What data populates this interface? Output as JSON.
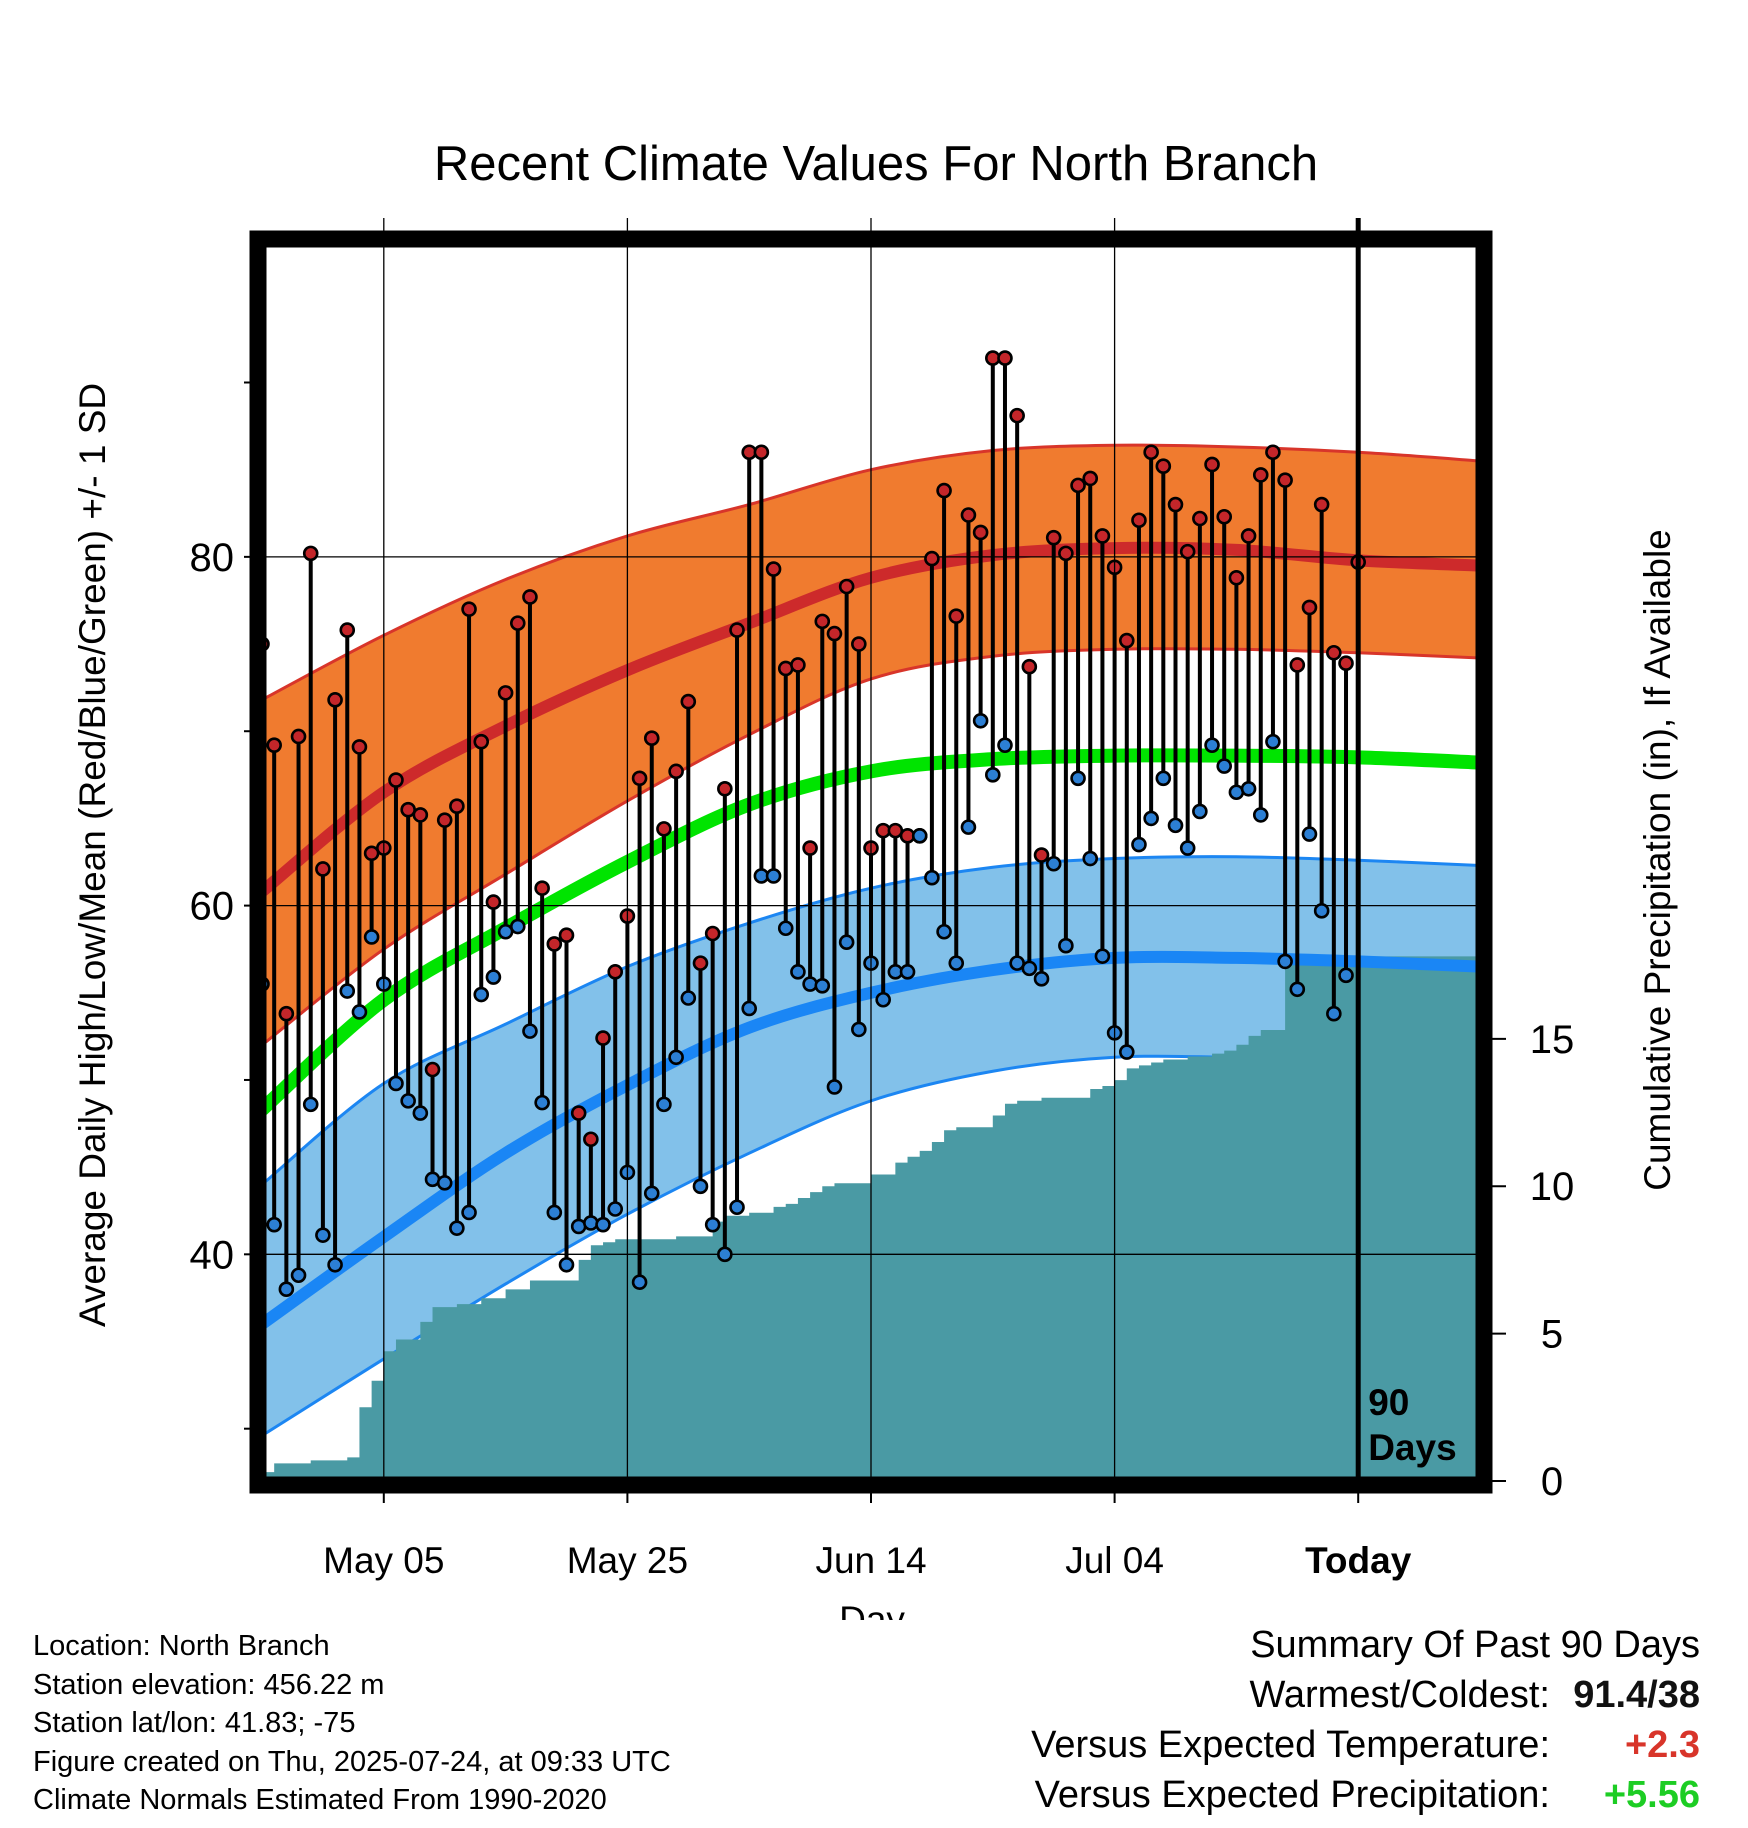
{
  "chart_data": {
    "type": "line",
    "title": "Recent Climate Values For North Branch",
    "xlabel": "Day",
    "ylabel": "Average Daily High/Low/Mean (Red/Blue/Green) +/- 1 SD",
    "y2label": "Cumulative Precipitation (in), If Available",
    "x_tick_labels": [
      "May 05",
      "May 25",
      "Jun 14",
      "Jul 04",
      "Today"
    ],
    "ylim": [
      27,
      98
    ],
    "y2lim": [
      0,
      42
    ],
    "y_ticks": [
      40,
      60,
      80
    ],
    "y2_ticks": [
      0,
      5,
      10,
      15
    ],
    "today_marker_label": [
      "90",
      "Days"
    ],
    "expected_curves": {
      "day_index": [
        0,
        10,
        20,
        30,
        40,
        50,
        60,
        70,
        80,
        90,
        100
      ],
      "normal_high_mean": [
        60.8,
        66.5,
        70.3,
        73.5,
        76.2,
        78.8,
        80.1,
        80.5,
        80.4,
        79.8,
        79.5
      ],
      "normal_high_upper": [
        71.8,
        75.5,
        78.7,
        81.2,
        83.0,
        85.0,
        86.1,
        86.4,
        86.3,
        86.0,
        85.5
      ],
      "normal_high_lower": [
        52.0,
        57.5,
        61.8,
        66.0,
        69.8,
        73.0,
        74.3,
        74.7,
        74.7,
        74.5,
        74.2
      ],
      "normal_mean": [
        48.3,
        54.6,
        58.7,
        62.5,
        65.8,
        67.7,
        68.4,
        68.6,
        68.6,
        68.5,
        68.2
      ],
      "normal_low_mean": [
        36.0,
        41.0,
        45.8,
        49.7,
        53.0,
        55.0,
        56.3,
        57.0,
        57.0,
        56.8,
        56.5
      ],
      "normal_low_upper": [
        44.0,
        49.8,
        53.2,
        56.5,
        59.0,
        61.0,
        62.2,
        62.7,
        62.8,
        62.6,
        62.3
      ],
      "normal_low_lower": [
        29.6,
        34.0,
        38.3,
        42.3,
        45.8,
        48.8,
        50.5,
        51.3,
        51.3,
        51.2,
        51.1
      ]
    },
    "series": [
      {
        "name": "Daily High",
        "color": "#c4262a",
        "day_index": [
          0,
          1,
          2,
          3,
          4,
          5,
          6,
          7,
          8,
          9,
          10,
          11,
          12,
          13,
          14,
          15,
          16,
          17,
          18,
          19,
          20,
          21,
          22,
          23,
          24,
          25,
          26,
          27,
          28,
          29,
          30,
          31,
          32,
          33,
          34,
          35,
          36,
          37,
          38,
          39,
          40,
          41,
          42,
          43,
          44,
          45,
          46,
          47,
          48,
          49,
          50,
          51,
          52,
          53,
          54,
          55,
          56,
          57,
          58,
          59,
          60,
          61,
          62,
          63,
          64,
          65,
          66,
          67,
          68,
          69,
          70,
          71,
          72,
          73,
          74,
          75,
          76,
          77,
          78,
          79,
          80,
          81,
          82,
          83,
          84,
          85,
          86,
          87,
          88,
          89,
          90
        ],
        "values": [
          75.0,
          69.2,
          53.8,
          69.7,
          80.2,
          62.1,
          71.8,
          75.8,
          69.1,
          63.0,
          63.3,
          67.2,
          65.5,
          65.2,
          50.6,
          64.9,
          65.7,
          77.0,
          69.4,
          60.2,
          72.2,
          76.2,
          77.7,
          61.0,
          57.8,
          58.3,
          48.1,
          46.6,
          52.4,
          56.2,
          59.4,
          67.3,
          69.6,
          64.4,
          67.7,
          71.7,
          56.7,
          58.4,
          66.7,
          75.8,
          86.0,
          86.0,
          79.3,
          73.6,
          73.8,
          63.3,
          76.3,
          75.6,
          78.3,
          75.0,
          63.3,
          64.3,
          64.3,
          64.0,
          64.0,
          79.9,
          83.8,
          76.6,
          82.4,
          81.4,
          91.4,
          91.4,
          88.1,
          73.7,
          62.9,
          81.1,
          80.2,
          84.1,
          84.5,
          81.2,
          79.4,
          75.2,
          82.1,
          86.0,
          85.2,
          83.0,
          80.3,
          82.2,
          85.3,
          82.3,
          78.8,
          81.2,
          84.7,
          86.0,
          84.4,
          73.8,
          77.1,
          83.0,
          74.5,
          73.9,
          79.7
        ]
      },
      {
        "name": "Daily Low",
        "color": "#2c7fd4",
        "day_index": [
          0,
          1,
          2,
          3,
          4,
          5,
          6,
          7,
          8,
          9,
          10,
          11,
          12,
          13,
          14,
          15,
          16,
          17,
          18,
          19,
          20,
          21,
          22,
          23,
          24,
          25,
          26,
          27,
          28,
          29,
          30,
          31,
          32,
          33,
          34,
          35,
          36,
          37,
          38,
          39,
          40,
          41,
          42,
          43,
          44,
          45,
          46,
          47,
          48,
          49,
          50,
          51,
          52,
          53,
          54,
          55,
          56,
          57,
          58,
          59,
          60,
          61,
          62,
          63,
          64,
          65,
          66,
          67,
          68,
          69,
          70,
          71,
          72,
          73,
          74,
          75,
          76,
          77,
          78,
          79,
          80,
          81,
          82,
          83,
          84,
          85,
          86,
          87,
          88,
          89,
          90
        ],
        "values": [
          55.5,
          41.7,
          38.0,
          38.8,
          48.6,
          41.1,
          39.4,
          55.1,
          53.9,
          58.2,
          55.5,
          49.8,
          48.8,
          48.1,
          44.3,
          44.1,
          41.5,
          42.4,
          54.9,
          55.9,
          58.5,
          58.8,
          52.8,
          48.7,
          42.4,
          39.4,
          41.6,
          41.8,
          41.7,
          42.6,
          44.7,
          38.4,
          43.5,
          48.6,
          51.3,
          54.7,
          43.9,
          41.7,
          40.0,
          42.7,
          54.1,
          61.7,
          61.7,
          58.7,
          56.2,
          55.5,
          55.4,
          49.6,
          57.9,
          52.9,
          56.7,
          54.6,
          56.2,
          56.2,
          64.0,
          61.6,
          58.5,
          56.7,
          64.5,
          70.6,
          67.5,
          69.2,
          56.7,
          56.4,
          55.8,
          62.4,
          57.7,
          67.3,
          62.7,
          57.1,
          52.7,
          51.6,
          63.5,
          65.0,
          67.3,
          64.6,
          63.3,
          65.4,
          69.2,
          68.0,
          66.5,
          66.7,
          65.2,
          69.4,
          56.8,
          55.2,
          64.1,
          59.7,
          53.8,
          56.0
        ]
      },
      {
        "name": "Cumulative Precipitation",
        "color": "#4a9aa4",
        "unit": "in",
        "day_index": [
          0,
          1,
          2,
          4,
          6,
          7,
          8,
          9,
          10,
          11,
          12,
          13,
          14,
          15,
          16,
          17,
          18,
          20,
          22,
          24,
          26,
          27,
          28,
          29,
          30,
          31,
          32,
          33,
          34,
          35,
          36,
          37,
          38,
          39,
          40,
          41,
          42,
          43,
          44,
          45,
          46,
          47,
          48,
          49,
          50,
          51,
          52,
          53,
          54,
          55,
          56,
          57,
          58,
          59,
          60,
          61,
          62,
          63,
          64,
          65,
          66,
          67,
          68,
          69,
          70,
          71,
          72,
          73,
          74,
          75,
          76,
          77,
          78,
          79,
          80,
          81,
          82,
          83,
          84,
          85,
          86,
          87,
          88,
          89,
          90,
          91,
          92,
          93,
          94,
          95,
          96,
          97,
          98,
          99,
          100
        ],
        "values": [
          0.3,
          0.6,
          0.6,
          0.7,
          0.7,
          0.8,
          2.5,
          3.4,
          4.4,
          4.8,
          4.8,
          5.4,
          5.9,
          5.9,
          6.0,
          6.0,
          6.2,
          6.5,
          6.8,
          6.8,
          7.5,
          8.0,
          8.1,
          8.2,
          8.2,
          8.2,
          8.2,
          8.2,
          8.3,
          8.3,
          8.3,
          8.8,
          9.0,
          9.0,
          9.1,
          9.1,
          9.3,
          9.4,
          9.6,
          9.8,
          10.0,
          10.1,
          10.1,
          10.1,
          10.4,
          10.4,
          10.8,
          11.0,
          11.2,
          11.5,
          11.9,
          12.0,
          12.0,
          12.0,
          12.4,
          12.8,
          12.9,
          12.9,
          13.0,
          13.0,
          13.0,
          13.0,
          13.3,
          13.4,
          13.6,
          14.0,
          14.1,
          14.2,
          14.3,
          14.3,
          14.4,
          14.4,
          14.5,
          14.6,
          14.8,
          15.1,
          15.3,
          15.3,
          17.6,
          17.7,
          17.8,
          17.8,
          17.8,
          17.8,
          17.8,
          17.8,
          17.8,
          17.8,
          17.8,
          17.8,
          17.8,
          17.8,
          17.8,
          17.8,
          17.8
        ]
      }
    ],
    "legend": "none",
    "grid": true
  },
  "colors": {
    "high_band": "#f07b2f",
    "high_edge": "#d8352a",
    "high_mean_line": "#cd2a2b",
    "mean_line": "#00e400",
    "low_band": "#82c1ea",
    "low_edge": "#1c86f2",
    "low_mean_line": "#1a86f5",
    "precip_fill": "#4a9aa4",
    "warm": "#d8352a",
    "wet": "#1dcd24"
  },
  "info": {
    "location": "Location: North Branch",
    "elevation": "Station elevation: 456.22 m",
    "latlon": "Station lat/lon: 41.83; -75",
    "created": "Figure created on Thu, 2025-07-24, at 09:33 UTC",
    "normals": "Climate Normals Estimated From 1990-2020"
  },
  "summary": {
    "heading": "Summary Of Past 90 Days",
    "warmest_label": "Warmest/Coldest:",
    "warmest_value": "91.4/38",
    "temp_label": "Versus Expected Temperature:",
    "temp_value": "+2.3",
    "precip_label": "Versus Expected Precipitation:",
    "precip_value": "+5.56"
  }
}
